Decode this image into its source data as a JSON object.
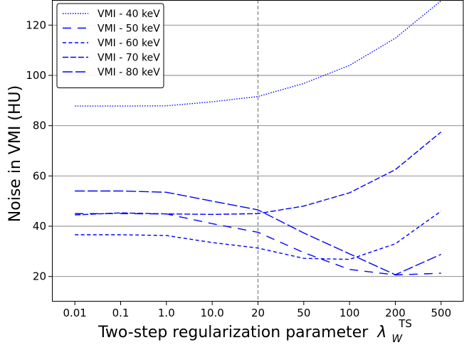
{
  "chart_data": {
    "type": "line",
    "xlabel": "Two-step regularization parameter",
    "xlabel_symbol": "λ",
    "xlabel_sub": "W",
    "xlabel_sup": "TS",
    "ylabel": "Noise in VMI (HU)",
    "categories": [
      "0.01",
      "0.1",
      "1.0",
      "10.0",
      "20",
      "50",
      "100",
      "200",
      "500"
    ],
    "ylim": [
      10,
      130
    ],
    "yticks": [
      20,
      40,
      60,
      80,
      100,
      120
    ],
    "grid": "horizontal",
    "legend_position": "top-left",
    "vline_at": "20",
    "line_color": "#0000ff",
    "series": [
      {
        "name": "VMI - 40 keV",
        "dash": "1.5,2",
        "values": [
          87.8,
          87.8,
          87.9,
          89.5,
          91.6,
          96.8,
          104.0,
          114.8,
          129.7
        ]
      },
      {
        "name": "VMI - 50 keV",
        "dash": "12,9",
        "values": [
          45.0,
          45.0,
          44.9,
          41.0,
          37.6,
          29.5,
          22.8,
          20.6,
          21.3
        ]
      },
      {
        "name": "VMI - 60 keV",
        "dash": "5,3.5",
        "values": [
          36.6,
          36.6,
          36.3,
          33.5,
          31.3,
          27.2,
          26.8,
          33.0,
          46.0
        ]
      },
      {
        "name": "VMI - 70 keV",
        "dash": "8,3",
        "values": [
          44.5,
          45.3,
          44.9,
          44.7,
          45.0,
          48.0,
          53.3,
          62.5,
          77.5
        ]
      },
      {
        "name": "VMI - 80 keV",
        "dash": "14,4",
        "values": [
          54.0,
          54.0,
          53.5,
          50.0,
          46.5,
          37.3,
          29.0,
          20.7,
          28.8
        ]
      }
    ]
  }
}
